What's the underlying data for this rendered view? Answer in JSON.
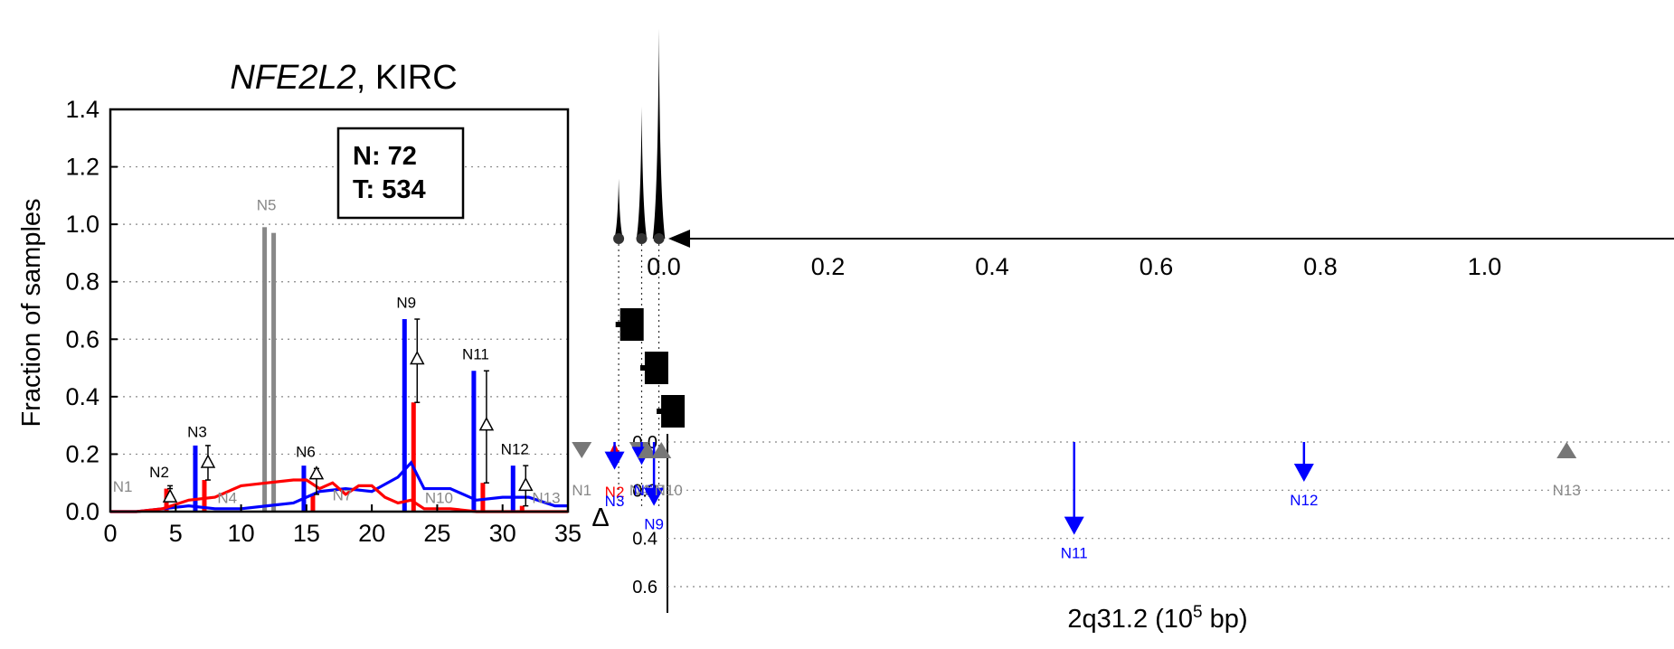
{
  "chart_data": [
    {
      "type": "bar",
      "title_gene": "NFE2L2",
      "title_rest": ", KIRC",
      "ylabel": "Fraction of samples",
      "xlim": [
        0,
        35
      ],
      "ylim": [
        0,
        1.4
      ],
      "xticks": [
        "0",
        "5",
        "10",
        "15",
        "20",
        "25",
        "30",
        "35"
      ],
      "yticks": [
        "0.0",
        "0.2",
        "0.4",
        "0.6",
        "0.8",
        "1.0",
        "1.2",
        "1.4"
      ],
      "legend": {
        "n_label": "N: 72",
        "t_label": "T: 534"
      },
      "colors": {
        "normal": "#0000ff",
        "tumor": "#ff0000",
        "gray": "#888888"
      },
      "peaks": [
        {
          "label": "N1",
          "x": 0.8,
          "label_y": 0.07,
          "label_color": "gray"
        },
        {
          "label": "N2",
          "x": 3.6,
          "normal": 0.0,
          "tumor": 0.08,
          "delta": 0.05,
          "err_top": 0.09,
          "label_y": 0.12,
          "label_color": "black"
        },
        {
          "label": "N3",
          "x": 6.5,
          "normal": 0.23,
          "tumor": 0.11,
          "delta": 0.17,
          "err_top": 0.23,
          "label_y": 0.26,
          "label_color": "black"
        },
        {
          "label": "N4",
          "x": 8.8,
          "label_y": 0.03,
          "label_color": "gray"
        },
        {
          "label": "N5",
          "x": 11.8,
          "gray1": 0.99,
          "gray2": 0.97,
          "label_y": 1.05,
          "label_color": "gray"
        },
        {
          "label": "N6",
          "x": 14.8,
          "normal": 0.16,
          "tumor": 0.06,
          "delta": 0.13,
          "err_top": 0.15,
          "label_y": 0.19,
          "label_color": "black"
        },
        {
          "label": "N7",
          "x": 17.6,
          "label_y": 0.04,
          "label_color": "gray"
        },
        {
          "label": "N9",
          "x": 22.5,
          "normal": 0.67,
          "tumor": 0.38,
          "delta": 0.53,
          "err_top": 0.67,
          "label_y": 0.71,
          "label_color": "black"
        },
        {
          "label": "N10",
          "x": 25.0,
          "label_y": 0.03,
          "label_color": "gray"
        },
        {
          "label": "N11",
          "x": 27.8,
          "normal": 0.49,
          "tumor": 0.1,
          "delta": 0.3,
          "err_top": 0.49,
          "label_y": 0.53,
          "label_color": "black"
        },
        {
          "label": "N12",
          "x": 30.8,
          "normal": 0.16,
          "tumor": 0.02,
          "delta": 0.09,
          "err_top": 0.16,
          "label_y": 0.2,
          "label_color": "black"
        },
        {
          "label": "N13",
          "x": 33.2,
          "label_y": 0.03,
          "label_color": "gray"
        }
      ],
      "normal_line": {
        "x": [
          0,
          2,
          4,
          6,
          8,
          10,
          12,
          14,
          16,
          18,
          20,
          22,
          23,
          24,
          26,
          28,
          30,
          32,
          34,
          35
        ],
        "y": [
          0,
          0,
          0.01,
          0.02,
          0.01,
          0.01,
          0.02,
          0.03,
          0.07,
          0.08,
          0.07,
          0.12,
          0.17,
          0.08,
          0.08,
          0.04,
          0.05,
          0.05,
          0.02,
          0.02
        ]
      },
      "tumor_line": {
        "x": [
          0,
          2,
          4,
          6,
          8,
          10,
          12,
          14,
          15,
          16,
          17,
          18,
          19,
          20,
          21,
          22,
          23,
          24,
          26,
          28,
          30,
          32,
          34,
          35
        ],
        "y": [
          0,
          0,
          0.01,
          0.04,
          0.05,
          0.09,
          0.1,
          0.11,
          0.11,
          0.08,
          0.1,
          0.06,
          0.09,
          0.09,
          0.05,
          0.03,
          0.04,
          0.01,
          0.01,
          0.0,
          0.0,
          0.0,
          0.0,
          0.0
        ]
      }
    },
    {
      "type": "scatter",
      "xlabel": "2q31.2 (10",
      "xlabel_sup": "5",
      "xlabel_end": " bp)",
      "ylabel": "Δ",
      "xticks": [
        "0.0",
        "0.2",
        "0.4",
        "0.6",
        "0.8",
        "1.0"
      ],
      "yticks": [
        "0.0",
        "0.2",
        "0.4",
        "0.6"
      ],
      "gene_models": [
        {
          "x": -0.04,
          "row": 0
        },
        {
          "x": -0.01,
          "row": 1
        },
        {
          "x": 0.01,
          "row": 2
        }
      ],
      "peaks_top": [
        {
          "x": -0.055,
          "height": 0.4
        },
        {
          "x": -0.027,
          "height": 0.88
        },
        {
          "x": -0.006,
          "height": 1.4
        }
      ],
      "points": [
        {
          "label": "N1",
          "x": -0.1,
          "delta": 0.03,
          "kind": "gray-down"
        },
        {
          "label": "N2",
          "x": -0.06,
          "delta": 0.03,
          "kind": "red-up"
        },
        {
          "label": "N3",
          "x": -0.06,
          "delta": 0.1,
          "kind": "blue-arrow"
        },
        {
          "label": "N4",
          "x": -0.03,
          "delta": 0.03,
          "kind": "gray-down"
        },
        {
          "label": "N6",
          "x": -0.027,
          "delta": 0.08,
          "kind": "blue-arrow"
        },
        {
          "label": "N7",
          "x": -0.02,
          "delta": 0.03,
          "kind": "gray-up"
        },
        {
          "label": "N9",
          "x": -0.012,
          "delta": 0.25,
          "kind": "blue-arrow"
        },
        {
          "label": "N10",
          "x": -0.003,
          "delta": 0.03,
          "kind": "gray-up"
        },
        {
          "label": "N11",
          "x": 0.5,
          "delta": 0.37,
          "kind": "blue-arrow"
        },
        {
          "label": "N12",
          "x": 0.78,
          "delta": 0.15,
          "kind": "blue-arrow"
        },
        {
          "label": "N13",
          "x": 1.1,
          "delta": 0.03,
          "kind": "gray-up"
        }
      ]
    }
  ]
}
